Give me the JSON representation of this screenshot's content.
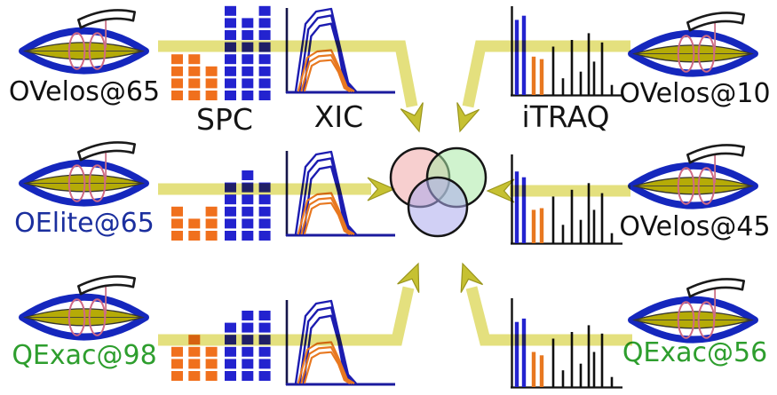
{
  "figure_type": "proteomics-benchmark-workflow-diagram",
  "colors": {
    "square_blue": "#2323cf",
    "square_orange": "#f0701d",
    "curve_blue": "#1c1cb0",
    "curve_orange": "#e87820",
    "curve_navy": "#1b1b9e",
    "bar_black": "#101010",
    "band_yellow": "#e4e07e",
    "arrow_olive": "#c6c132",
    "label_black": "#111111",
    "label_navy": "#1b2f9e",
    "label_green": "#2e9e2e"
  },
  "chart_labels": {
    "spc": "SPC",
    "xic": "XIC",
    "itraq": "iTRAQ"
  },
  "venn": {
    "circle_colors": [
      "#f0a8a8",
      "#aaeaa6",
      "#abaaec"
    ]
  },
  "rows": [
    {
      "left_label": "OVelos@65",
      "left_label_color": "#111111",
      "right_label": "OVelos@10",
      "right_label_color": "#111111",
      "spc": {
        "orange_counts": [
          4,
          4,
          3
        ],
        "blue_counts": [
          8,
          7,
          8
        ]
      },
      "xic": {
        "blue_scales": [
          1.0,
          0.92,
          0.82
        ],
        "orange_scales": [
          0.5,
          0.44,
          0.38
        ]
      },
      "itraq_bars": [
        {
          "color": "blue",
          "h": 0.9
        },
        {
          "color": "blue",
          "h": 0.95
        },
        {
          "color": "orange",
          "h": 0.46
        },
        {
          "color": "orange",
          "h": 0.43
        },
        {
          "color": "black",
          "h": 0.58
        },
        {
          "color": "black",
          "h": 0.2
        },
        {
          "color": "black",
          "h": 0.66
        },
        {
          "color": "black",
          "h": 0.28
        },
        {
          "color": "black",
          "h": 0.74
        },
        {
          "color": "black",
          "h": 0.4
        },
        {
          "color": "black",
          "h": 0.63
        },
        {
          "color": "black",
          "h": 0.12
        }
      ]
    },
    {
      "left_label": "OElite@65",
      "left_label_color": "#1b2f9e",
      "right_label": "OVelos@45",
      "right_label_color": "#111111",
      "spc": {
        "orange_counts": [
          3,
          2,
          3
        ],
        "blue_counts": [
          5,
          6,
          5
        ]
      },
      "xic": {
        "blue_scales": [
          1.0,
          0.92,
          0.82
        ],
        "orange_scales": [
          0.5,
          0.44,
          0.38
        ]
      },
      "itraq_bars": [
        {
          "color": "blue",
          "h": 0.86
        },
        {
          "color": "blue",
          "h": 0.79
        },
        {
          "color": "orange",
          "h": 0.4
        },
        {
          "color": "orange",
          "h": 0.42
        },
        {
          "color": "black",
          "h": 0.56
        },
        {
          "color": "black",
          "h": 0.22
        },
        {
          "color": "black",
          "h": 0.64
        },
        {
          "color": "black",
          "h": 0.28
        },
        {
          "color": "black",
          "h": 0.72
        },
        {
          "color": "black",
          "h": 0.4
        },
        {
          "color": "black",
          "h": 0.6
        },
        {
          "color": "black",
          "h": 0.12
        }
      ]
    },
    {
      "left_label": "QExac@98",
      "left_label_color": "#2e9e2e",
      "right_label": "QExac@56",
      "right_label_color": "#2e9e2e",
      "spc": {
        "orange_counts": [
          3,
          4,
          3
        ],
        "blue_counts": [
          5,
          6,
          6
        ]
      },
      "xic": {
        "blue_scales": [
          1.0,
          0.92,
          0.82
        ],
        "orange_scales": [
          0.5,
          0.44,
          0.38
        ]
      },
      "itraq_bars": [
        {
          "color": "blue",
          "h": 0.78
        },
        {
          "color": "blue",
          "h": 0.82
        },
        {
          "color": "orange",
          "h": 0.42
        },
        {
          "color": "orange",
          "h": 0.38
        },
        {
          "color": "black",
          "h": 0.58
        },
        {
          "color": "black",
          "h": 0.2
        },
        {
          "color": "black",
          "h": 0.66
        },
        {
          "color": "black",
          "h": 0.28
        },
        {
          "color": "black",
          "h": 0.74
        },
        {
          "color": "black",
          "h": 0.42
        },
        {
          "color": "black",
          "h": 0.64
        },
        {
          "color": "black",
          "h": 0.12
        }
      ]
    }
  ]
}
